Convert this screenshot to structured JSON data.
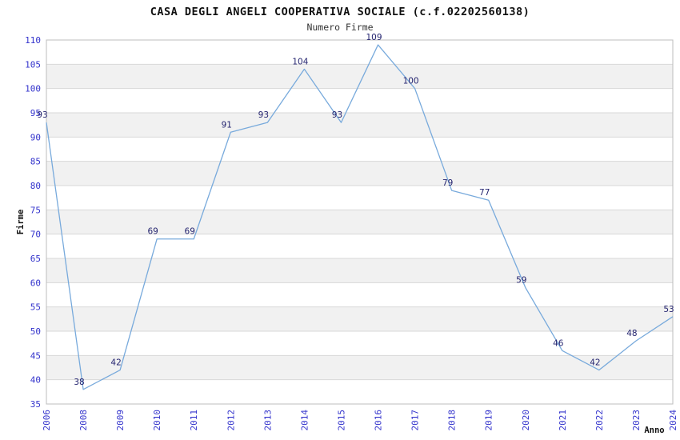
{
  "chart_data": {
    "type": "line",
    "title": "CASA DEGLI ANGELI COOPERATIVA SOCIALE (c.f.02202560138)",
    "subtitle": "Numero Firme",
    "xlabel": "Anno",
    "ylabel": "Firme",
    "categories": [
      "2006",
      "2008",
      "2009",
      "2010",
      "2011",
      "2012",
      "2013",
      "2014",
      "2015",
      "2016",
      "2017",
      "2018",
      "2019",
      "2020",
      "2021",
      "2022",
      "2023",
      "2024"
    ],
    "values": [
      93,
      38,
      42,
      69,
      69,
      91,
      93,
      104,
      93,
      109,
      100,
      79,
      77,
      59,
      46,
      42,
      48,
      53
    ],
    "ylim": [
      35,
      110
    ],
    "ytick_step": 5,
    "grid": true,
    "legend": "none",
    "colors": {
      "line": "#78aadc",
      "tick_labels": "#3333cc",
      "data_labels": "#252570",
      "axis_titles": "#111111",
      "gridline": "#d8d8d8",
      "band_alt": "#f1f1f1",
      "band_main": "#ffffff",
      "plot_border": "#bdbdbd",
      "background": "#ffffff"
    }
  }
}
